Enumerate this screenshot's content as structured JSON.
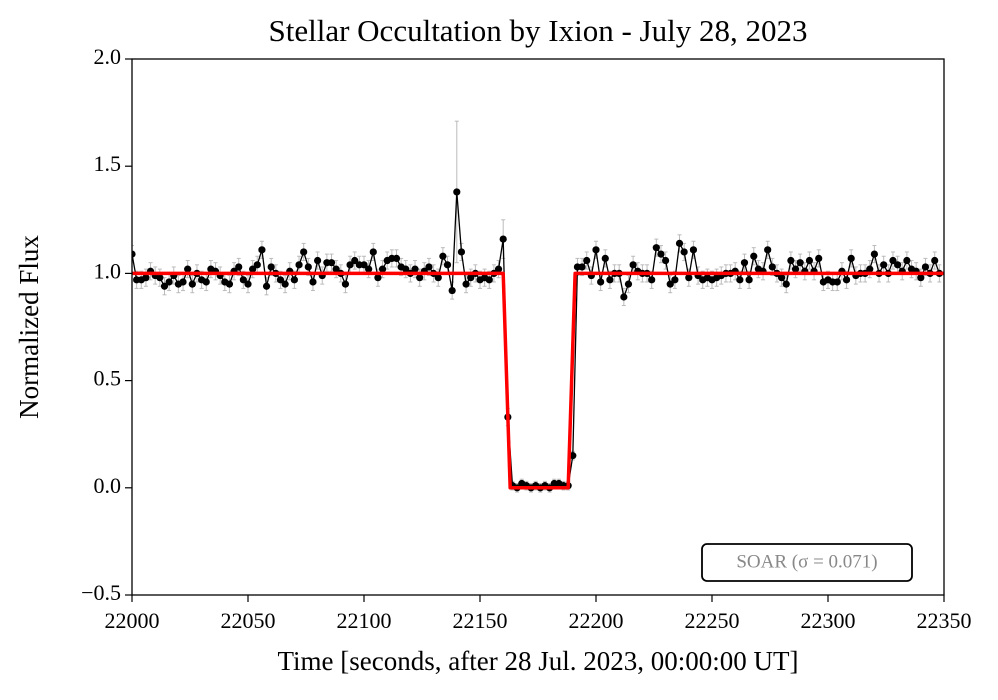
{
  "chart_data": {
    "type": "errorbar",
    "title": "Stellar Occultation by Ixion - July 28, 2023",
    "xlabel": "Time [seconds, after 28 Jul. 2023, 00:00:00 UT]",
    "ylabel": "Normalized Flux",
    "annotation": "SOAR (σ = 0.071)",
    "xlim": [
      22000,
      22350
    ],
    "xticks": [
      22000,
      22050,
      22100,
      22150,
      22200,
      22250,
      22300,
      22350
    ],
    "ylim": [
      -0.5,
      2.0
    ],
    "yticks": [
      {
        "value": -0.5,
        "label": "−0.5"
      },
      {
        "value": 0.0,
        "label": "0.0"
      },
      {
        "value": 0.5,
        "label": "0.5"
      },
      {
        "value": 1.0,
        "label": "1.0"
      },
      {
        "value": 1.5,
        "label": "1.5"
      },
      {
        "value": 2.0,
        "label": "2.0"
      }
    ],
    "series": [
      {
        "color": "#000000",
        "error_color": "#bbbbbb",
        "x": [
          22000,
          22002,
          22004,
          22006,
          22008,
          22010,
          22012,
          22014,
          22016,
          22018,
          22020,
          22022,
          22024,
          22026,
          22028,
          22030,
          22032,
          22034,
          22036,
          22038,
          22040,
          22042,
          22044,
          22046,
          22048,
          22050,
          22052,
          22054,
          22056,
          22058,
          22060,
          22062,
          22064,
          22066,
          22068,
          22070,
          22072,
          22074,
          22076,
          22078,
          22080,
          22082,
          22084,
          22086,
          22088,
          22090,
          22092,
          22094,
          22096,
          22098,
          22100,
          22102,
          22104,
          22106,
          22108,
          22110,
          22112,
          22114,
          22116,
          22118,
          22120,
          22122,
          22124,
          22126,
          22128,
          22130,
          22132,
          22134,
          22136,
          22138,
          22140,
          22142,
          22144,
          22146,
          22148,
          22150,
          22152,
          22154,
          22156,
          22158,
          22160,
          22162,
          22164,
          22166,
          22168,
          22170,
          22172,
          22174,
          22176,
          22178,
          22180,
          22182,
          22184,
          22186,
          22188,
          22190,
          22192,
          22194,
          22196,
          22198,
          22200,
          22202,
          22204,
          22206,
          22208,
          22210,
          22212,
          22214,
          22216,
          22218,
          22220,
          22222,
          22224,
          22226,
          22228,
          22230,
          22232,
          22234,
          22236,
          22238,
          22240,
          22242,
          22244,
          22246,
          22248,
          22250,
          22252,
          22254,
          22256,
          22258,
          22260,
          22262,
          22264,
          22266,
          22268,
          22270,
          22272,
          22274,
          22276,
          22278,
          22280,
          22282,
          22284,
          22286,
          22288,
          22290,
          22292,
          22294,
          22296,
          22298,
          22300,
          22302,
          22304,
          22306,
          22308,
          22310,
          22312,
          22314,
          22316,
          22318,
          22320,
          22322,
          22324,
          22326,
          22328,
          22330,
          22332,
          22334,
          22336,
          22338,
          22340,
          22342,
          22344,
          22346,
          22348
        ],
        "values": [
          1.09,
          0.97,
          0.97,
          0.98,
          1.01,
          0.99,
          0.98,
          0.94,
          0.96,
          0.99,
          0.95,
          0.96,
          1.02,
          0.95,
          1.0,
          0.97,
          0.96,
          1.02,
          1.01,
          0.99,
          0.96,
          0.95,
          1.01,
          1.03,
          0.97,
          0.95,
          1.02,
          1.04,
          1.11,
          0.94,
          1.03,
          1.0,
          0.97,
          0.95,
          1.01,
          0.97,
          1.04,
          1.1,
          1.03,
          0.96,
          1.06,
          0.99,
          1.05,
          1.05,
          1.02,
          1.0,
          0.95,
          1.04,
          1.06,
          1.04,
          1.04,
          1.02,
          1.1,
          0.98,
          1.02,
          1.06,
          1.07,
          1.07,
          1.03,
          1.02,
          1.0,
          1.02,
          0.98,
          1.01,
          1.03,
          1.0,
          0.98,
          1.08,
          1.04,
          0.92,
          1.38,
          1.1,
          0.95,
          0.98,
          1.0,
          0.97,
          0.98,
          0.97,
          1.0,
          1.02,
          1.16,
          0.33,
          0.01,
          0.0,
          0.02,
          0.01,
          0.0,
          0.01,
          0.0,
          0.01,
          0.0,
          0.02,
          0.02,
          0.01,
          0.01,
          0.15,
          1.03,
          1.03,
          1.06,
          0.99,
          1.11,
          0.96,
          1.07,
          0.97,
          1.0,
          1.0,
          0.89,
          0.95,
          1.04,
          1.01,
          1.0,
          1.0,
          0.97,
          1.12,
          1.09,
          1.06,
          0.95,
          0.97,
          1.14,
          1.1,
          0.98,
          1.11,
          0.99,
          0.97,
          0.98,
          0.97,
          0.98,
          0.99,
          1.0,
          1.0,
          1.01,
          0.97,
          1.05,
          0.97,
          1.08,
          1.02,
          1.01,
          1.11,
          1.03,
          1.0,
          0.98,
          0.95,
          1.06,
          1.02,
          1.05,
          1.01,
          1.06,
          1.01,
          1.07,
          0.96,
          0.97,
          0.96,
          0.96,
          1.01,
          0.97,
          1.07,
          0.99,
          1.0,
          1.0,
          1.02,
          1.09,
          1.0,
          1.04,
          1.0,
          1.06,
          1.04,
          1.01,
          1.06,
          1.02,
          1.01,
          0.98,
          1.03,
          1.0,
          1.06,
          1.0
        ],
        "errors": [
          0.04,
          0.04,
          0.04,
          0.04,
          0.04,
          0.04,
          0.04,
          0.04,
          0.04,
          0.04,
          0.04,
          0.04,
          0.04,
          0.04,
          0.04,
          0.04,
          0.04,
          0.04,
          0.04,
          0.04,
          0.04,
          0.04,
          0.04,
          0.04,
          0.04,
          0.04,
          0.04,
          0.04,
          0.04,
          0.04,
          0.04,
          0.04,
          0.04,
          0.04,
          0.04,
          0.04,
          0.04,
          0.04,
          0.04,
          0.04,
          0.04,
          0.04,
          0.04,
          0.04,
          0.04,
          0.04,
          0.04,
          0.04,
          0.04,
          0.04,
          0.04,
          0.04,
          0.04,
          0.04,
          0.04,
          0.04,
          0.04,
          0.04,
          0.04,
          0.04,
          0.04,
          0.04,
          0.04,
          0.04,
          0.04,
          0.04,
          0.04,
          0.04,
          0.04,
          0.04,
          0.33,
          0.04,
          0.04,
          0.04,
          0.04,
          0.04,
          0.04,
          0.04,
          0.04,
          0.04,
          0.09,
          0.04,
          0.02,
          0.02,
          0.02,
          0.02,
          0.02,
          0.02,
          0.02,
          0.02,
          0.02,
          0.02,
          0.02,
          0.02,
          0.02,
          0.02,
          0.04,
          0.04,
          0.04,
          0.04,
          0.04,
          0.04,
          0.04,
          0.04,
          0.04,
          0.04,
          0.04,
          0.04,
          0.04,
          0.04,
          0.04,
          0.04,
          0.04,
          0.04,
          0.04,
          0.04,
          0.04,
          0.04,
          0.04,
          0.04,
          0.04,
          0.04,
          0.04,
          0.04,
          0.04,
          0.04,
          0.04,
          0.04,
          0.04,
          0.04,
          0.04,
          0.04,
          0.04,
          0.04,
          0.04,
          0.04,
          0.04,
          0.04,
          0.04,
          0.04,
          0.04,
          0.04,
          0.04,
          0.04,
          0.04,
          0.04,
          0.04,
          0.04,
          0.04,
          0.04,
          0.04,
          0.04,
          0.04,
          0.04,
          0.04,
          0.04,
          0.04,
          0.04,
          0.04,
          0.04,
          0.04,
          0.04,
          0.04,
          0.04,
          0.04,
          0.04,
          0.04,
          0.04,
          0.04,
          0.04,
          0.04,
          0.04,
          0.04,
          0.04,
          0.04
        ]
      },
      {
        "type": "line",
        "color": "#ff0000",
        "x": [
          22000,
          22160,
          22163,
          22188,
          22191,
          22350
        ],
        "values": [
          1,
          1,
          0,
          0,
          1,
          1
        ]
      }
    ]
  }
}
